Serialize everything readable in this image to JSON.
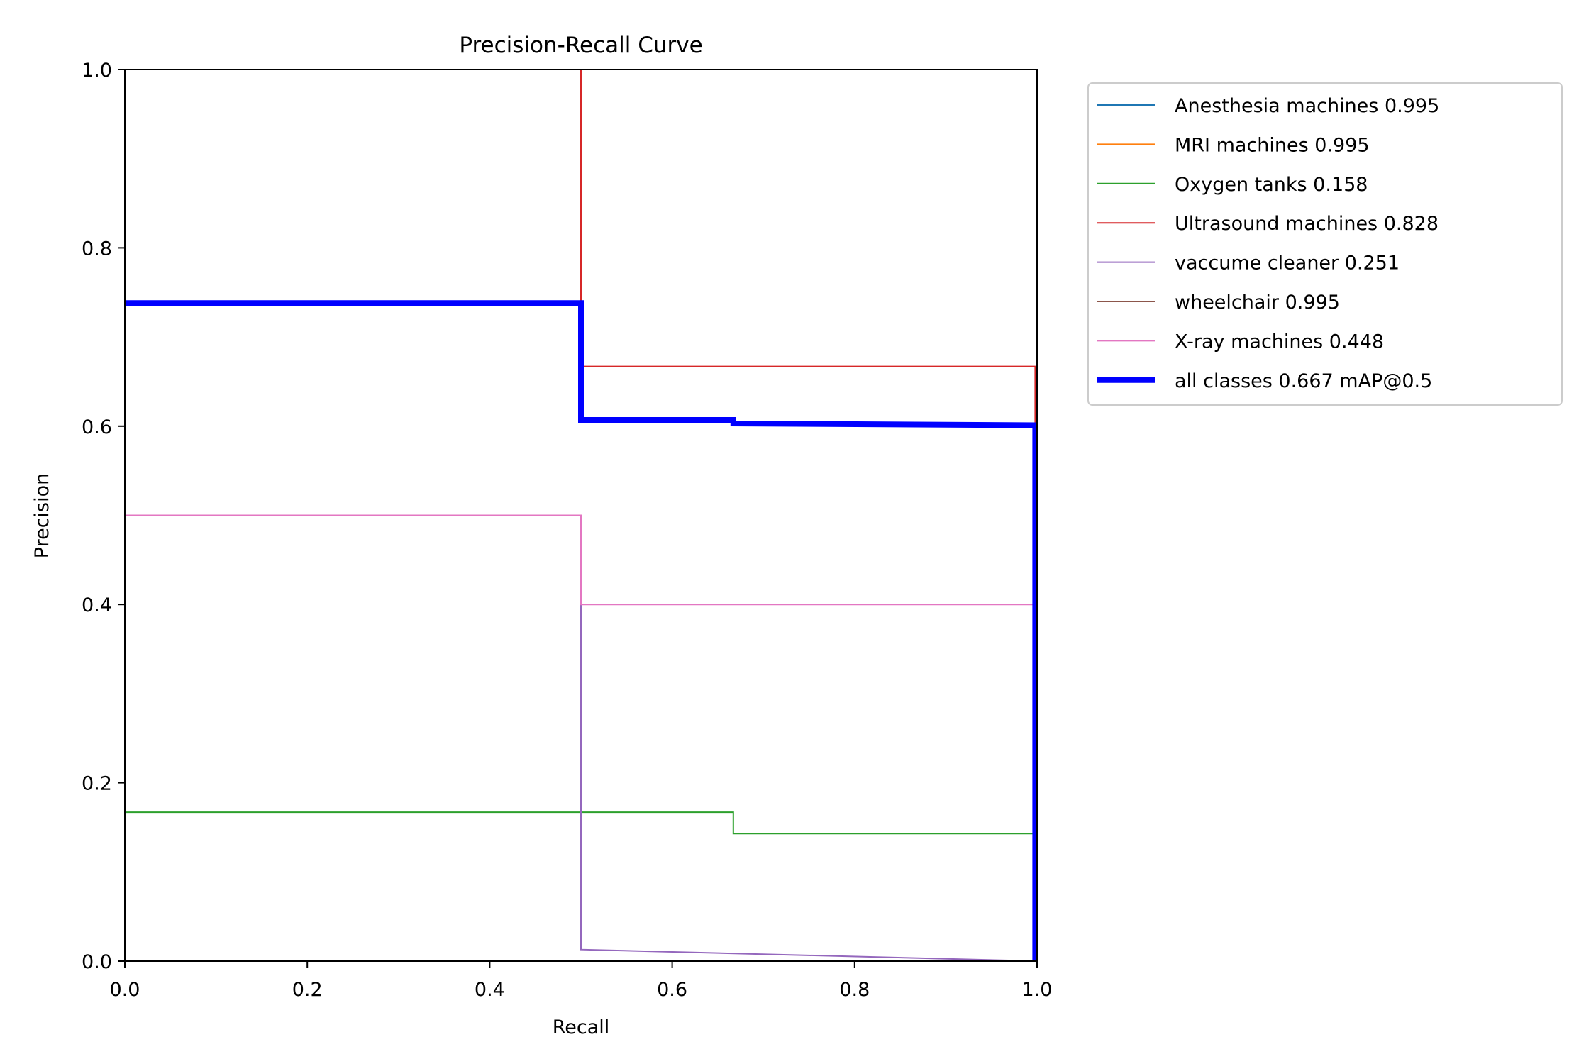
{
  "chart_data": {
    "type": "line",
    "title": "Precision-Recall Curve",
    "xlabel": "Recall",
    "ylabel": "Precision",
    "xlim": [
      0,
      1
    ],
    "ylim": [
      0,
      1
    ],
    "x_ticks": [
      "0.0",
      "0.2",
      "0.4",
      "0.6",
      "0.8",
      "1.0"
    ],
    "y_ticks": [
      "0.0",
      "0.2",
      "0.4",
      "0.6",
      "0.8",
      "1.0"
    ],
    "x_tick_values": [
      0,
      0.2,
      0.4,
      0.6,
      0.8,
      1.0
    ],
    "y_tick_values": [
      0,
      0.2,
      0.4,
      0.6,
      0.8,
      1.0
    ],
    "grid": false,
    "legend_position": "outside-top-right",
    "series": [
      {
        "name": "Anesthesia machines 0.995",
        "color": "#1f77b4",
        "width": "thin",
        "x": [
          1.0,
          1.0
        ],
        "y": [
          1.0,
          0.0
        ]
      },
      {
        "name": "MRI machines 0.995",
        "color": "#ff7f0e",
        "width": "thin",
        "x": [
          1.0,
          1.0
        ],
        "y": [
          1.0,
          0.0
        ]
      },
      {
        "name": "Oxygen tanks 0.158",
        "color": "#2ca02c",
        "width": "thin",
        "x": [
          0.0,
          0.667,
          0.667,
          0.998,
          0.998
        ],
        "y": [
          0.167,
          0.167,
          0.143,
          0.143,
          0.0
        ]
      },
      {
        "name": "Ultrasound machines 0.828",
        "color": "#d62728",
        "width": "thin",
        "x": [
          0.5,
          0.5,
          0.998,
          0.998,
          1.0,
          1.0
        ],
        "y": [
          1.0,
          0.667,
          0.667,
          0.0,
          0.0,
          1.0
        ]
      },
      {
        "name": "vaccume cleaner 0.251",
        "color": "#9467bd",
        "width": "thin",
        "x": [
          0.5,
          0.5,
          1.0
        ],
        "y": [
          0.4,
          0.013,
          0.0
        ]
      },
      {
        "name": "wheelchair 0.995",
        "color": "#8c564b",
        "width": "thin",
        "x": [
          1.0,
          1.0
        ],
        "y": [
          1.0,
          0.0
        ]
      },
      {
        "name": "X-ray machines 0.448",
        "color": "#e377c2",
        "width": "thin",
        "x": [
          0.0,
          0.5,
          0.5,
          0.998,
          0.998
        ],
        "y": [
          0.5,
          0.5,
          0.4,
          0.4,
          0.0
        ]
      },
      {
        "name": "all classes 0.667 mAP@0.5",
        "color": "#0000ff",
        "width": "thick",
        "x": [
          0.0,
          0.5,
          0.5,
          0.667,
          0.667,
          0.998,
          0.998
        ],
        "y": [
          0.738,
          0.738,
          0.607,
          0.607,
          0.603,
          0.601,
          0.0
        ]
      }
    ]
  }
}
